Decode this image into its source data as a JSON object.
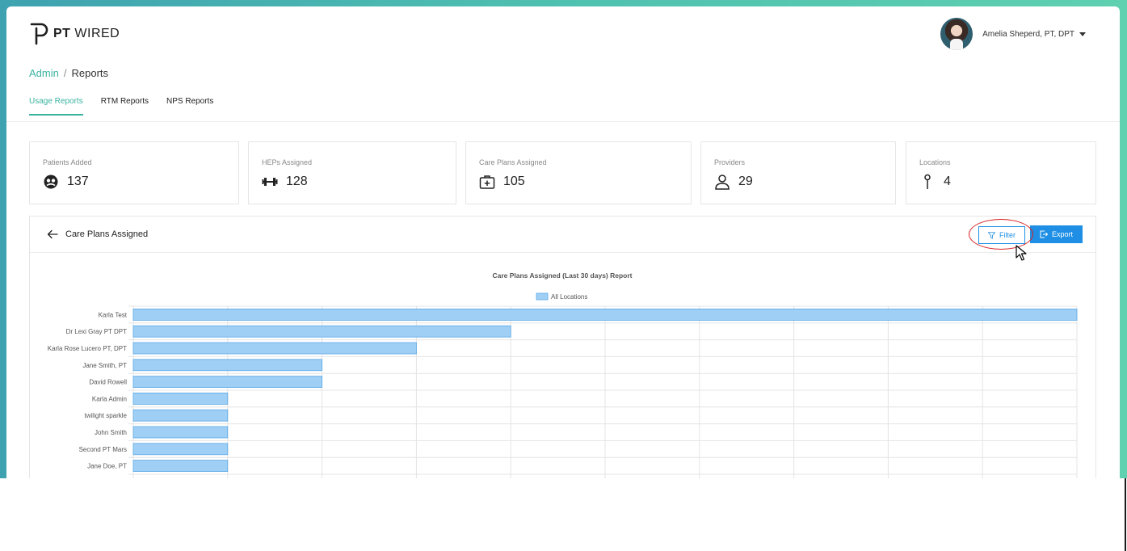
{
  "brand": {
    "bold": "PT",
    "rest": "WIRED"
  },
  "user": {
    "name": "Amelia Sheperd, PT, DPT"
  },
  "breadcrumb": {
    "parent": "Admin",
    "separator": "/",
    "current": "Reports"
  },
  "tabs": [
    {
      "label": "Usage Reports",
      "active": true
    },
    {
      "label": "RTM Reports",
      "active": false
    },
    {
      "label": "NPS Reports",
      "active": false
    }
  ],
  "stats": [
    {
      "label": "Patients Added",
      "value": "137",
      "icon": "patients-icon"
    },
    {
      "label": "HEPs Assigned",
      "value": "128",
      "icon": "dumbbell-icon"
    },
    {
      "label": "Care Plans Assigned",
      "value": "105",
      "icon": "medkit-icon"
    },
    {
      "label": "Providers",
      "value": "29",
      "icon": "person-icon"
    },
    {
      "label": "Locations",
      "value": "4",
      "icon": "pin-icon"
    }
  ],
  "panel": {
    "title": "Care Plans Assigned",
    "filter_label": "Filter",
    "export_label": "Export"
  },
  "colors": {
    "accent": "#3bb3a0",
    "primary": "#1e8fe5",
    "bar_fill": "#9fcff5",
    "bar_stroke": "#5ba8e6"
  },
  "chart_data": {
    "type": "bar",
    "orientation": "horizontal",
    "title": "Care Plans Assigned (Last 30 days) Report",
    "legend": {
      "position": "top",
      "entries": [
        "All Locations"
      ]
    },
    "categories": [
      "Karla Test",
      "Dr Lexi Gray PT DPT",
      "Karla Rose Lucero PT, DPT",
      "Jane Smith, PT",
      "David Rowell",
      "Karla Admin",
      "twilight sparkle",
      "John Smith",
      "Second PT Mars",
      "Jane Doe, PT"
    ],
    "series": [
      {
        "name": "All Locations",
        "values": [
          10,
          4,
          3,
          2,
          2,
          1,
          1,
          1,
          1,
          1
        ]
      }
    ],
    "xlim": [
      0,
      10
    ],
    "grid": true
  }
}
